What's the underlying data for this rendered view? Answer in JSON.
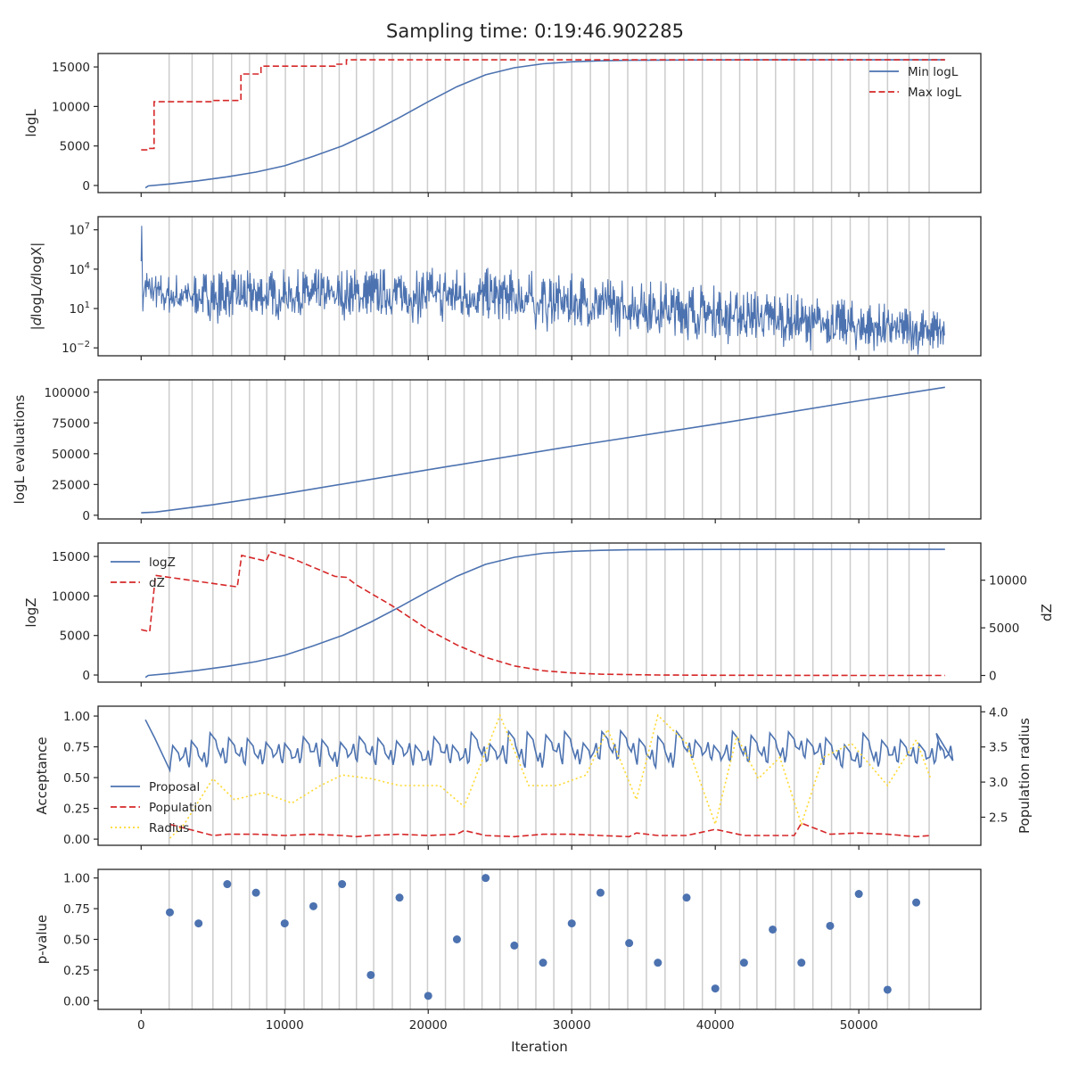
{
  "figure": {
    "title": "Sampling time: 0:19:46.902285",
    "xlabel": "Iteration"
  },
  "colors": {
    "blue": "#4c72b0",
    "red": "#d62728",
    "gold": "#ffd92f",
    "grid": "#cccccc",
    "axis": "#262626"
  },
  "run_markers": [
    1950,
    3550,
    5000,
    6300,
    7550,
    8750,
    10050,
    11350,
    12600,
    13800,
    15000,
    16200,
    17500,
    18750,
    19950,
    21200,
    22500,
    23750,
    25000,
    26250,
    27500,
    28750,
    30000,
    31300,
    32600,
    33900,
    35200,
    36500,
    37800,
    39100,
    40400,
    41700,
    42900,
    44200,
    45500,
    46800,
    48100,
    49400,
    50700,
    52000,
    53500,
    54900
  ],
  "chart_data": [
    {
      "type": "line",
      "ylabel": "logL",
      "xlim": [
        -3000,
        58500
      ],
      "ylim": [
        -900,
        16700
      ],
      "yticks": [
        0,
        5000,
        10000,
        15000
      ],
      "ytick_labels": [
        "0",
        "5000",
        "10000",
        "15000"
      ],
      "legend_loc": "upper right",
      "series": [
        {
          "name": "Min logL",
          "style": "solid",
          "color": "#4c72b0",
          "x": [
            300,
            500,
            2000,
            4000,
            6000,
            8000,
            10000,
            12000,
            14000,
            16000,
            18000,
            20000,
            22000,
            24000,
            26000,
            28000,
            30000,
            32000,
            34000,
            36000,
            40000,
            45000,
            50000,
            56000
          ],
          "y": [
            -300,
            -50,
            200,
            600,
            1100,
            1700,
            2500,
            3700,
            5000,
            6700,
            8600,
            10600,
            12500,
            14000,
            14900,
            15400,
            15650,
            15780,
            15840,
            15870,
            15890,
            15900,
            15900,
            15900
          ]
        },
        {
          "name": "Max logL",
          "style": "dashed",
          "color": "#d62728",
          "x": [
            0,
            600,
            600,
            900,
            900,
            5000,
            5000,
            6950,
            6950,
            8350,
            8350,
            13500,
            13500,
            14300,
            14300,
            56000
          ],
          "y": [
            4500,
            4500,
            4700,
            4700,
            10600,
            10600,
            10750,
            10750,
            14100,
            14100,
            15100,
            15100,
            15350,
            15350,
            15900,
            15900
          ]
        }
      ]
    },
    {
      "type": "line",
      "ylabel": "|dlogL/dlogX|",
      "yscale": "log",
      "xlim": [
        -3000,
        58500
      ],
      "ylim": [
        0.0025,
        100000000
      ],
      "yticks": [
        0.01,
        10,
        10000,
        10000000
      ],
      "ytick_labels": [
        "10^-2",
        "10^1",
        "10^4",
        "10^7"
      ],
      "noisy_band": {
        "x": [
          0,
          1500,
          5000,
          10000,
          15000,
          20000,
          25000,
          30000,
          35000,
          40000,
          45000,
          50000,
          56000
        ],
        "upper_log10": [
          4.6,
          3.7,
          3.9,
          4.0,
          4.1,
          4.2,
          4.1,
          3.7,
          3.3,
          2.8,
          2.2,
          1.6,
          1.0
        ],
        "lower_log10": [
          1.4,
          0.6,
          0.4,
          0.5,
          0.5,
          0.4,
          0.1,
          -0.3,
          -0.7,
          -1.1,
          -1.5,
          -1.9,
          -2.3
        ],
        "spike": {
          "x": 40,
          "log10": 7.3
        }
      },
      "series": [
        {
          "name": "",
          "style": "solid",
          "color": "#4c72b0"
        }
      ]
    },
    {
      "type": "line",
      "ylabel": "logL evaluations",
      "xlim": [
        -3000,
        58500
      ],
      "ylim": [
        -3000,
        110000
      ],
      "yticks": [
        0,
        25000,
        50000,
        75000,
        100000
      ],
      "ytick_labels": [
        "0",
        "25000",
        "50000",
        "75000",
        "100000"
      ],
      "series": [
        {
          "name": "",
          "style": "solid",
          "color": "#4c72b0",
          "x": [
            0,
            1000,
            5000,
            10000,
            20000,
            30000,
            40000,
            50000,
            56000
          ],
          "y": [
            2000,
            2600,
            8500,
            17500,
            37000,
            56000,
            74000,
            93000,
            104000
          ]
        }
      ]
    },
    {
      "type": "line",
      "ylabel": "logZ",
      "ylabel_right": "dZ",
      "xlim": [
        -3000,
        58500
      ],
      "ylim": [
        -900,
        16700
      ],
      "ylim_right": [
        -700,
        13900
      ],
      "yticks": [
        0,
        5000,
        10000,
        15000
      ],
      "ytick_labels": [
        "0",
        "5000",
        "10000",
        "15000"
      ],
      "yticks_right": [
        0,
        5000,
        10000
      ],
      "ytick_labels_right": [
        "0",
        "5000",
        "10000"
      ],
      "legend_loc": "upper left",
      "series": [
        {
          "name": "logZ",
          "style": "solid",
          "color": "#4c72b0",
          "axis": "left",
          "x": [
            300,
            500,
            2000,
            4000,
            6000,
            8000,
            10000,
            12000,
            14000,
            16000,
            18000,
            20000,
            22000,
            24000,
            26000,
            28000,
            30000,
            32000,
            34000,
            36000,
            40000,
            45000,
            50000,
            56000
          ],
          "y": [
            -300,
            -50,
            200,
            600,
            1100,
            1700,
            2500,
            3700,
            5000,
            6700,
            8600,
            10600,
            12500,
            14000,
            14900,
            15400,
            15650,
            15780,
            15840,
            15870,
            15890,
            15900,
            15900,
            15900
          ]
        },
        {
          "name": "dZ",
          "style": "dashed",
          "color": "#d62728",
          "axis": "right",
          "x": [
            0,
            600,
            600,
            1000,
            6700,
            6700,
            7000,
            8700,
            8700,
            9000,
            10500,
            13500,
            14300,
            15000,
            17500,
            20000,
            22000,
            24000,
            26000,
            28000,
            30000,
            32000,
            36000,
            40000,
            45000,
            50000,
            56000
          ],
          "y": [
            4800,
            4600,
            4700,
            10500,
            9300,
            9300,
            12600,
            12000,
            12000,
            13000,
            12300,
            10400,
            10300,
            9500,
            7300,
            4800,
            3200,
            1900,
            1000,
            500,
            260,
            130,
            50,
            20,
            8,
            3,
            0
          ]
        }
      ]
    },
    {
      "type": "line",
      "ylabel": "Acceptance",
      "ylabel_right": "Population radius",
      "xlim": [
        -3000,
        58500
      ],
      "ylim": [
        -0.05,
        1.08
      ],
      "ylim_right": [
        2.1,
        4.08
      ],
      "yticks": [
        0,
        0.25,
        0.5,
        0.75,
        1.0
      ],
      "ytick_labels": [
        "0.00",
        "0.25",
        "0.50",
        "0.75",
        "1.00"
      ],
      "yticks_right": [
        2.5,
        3.0,
        3.5,
        4.0
      ],
      "ytick_labels_right": [
        "2.5",
        "3.0",
        "3.5",
        "4.0"
      ],
      "legend_loc": "lower left",
      "series": [
        {
          "name": "Proposal",
          "style": "solid",
          "color": "#4c72b0",
          "axis": "left",
          "sawtooth": {
            "start_x": 300,
            "end_x": 55700,
            "period": 1300,
            "first_top": 0.97,
            "top": 0.82,
            "bottom": 0.63
          }
        },
        {
          "name": "Population",
          "style": "dashed",
          "color": "#d62728",
          "axis": "left",
          "x": [
            2000,
            4000,
            5000,
            6000,
            8000,
            10000,
            12000,
            14000,
            15000,
            16000,
            18000,
            20000,
            22000,
            22500,
            24000,
            26000,
            28000,
            30000,
            32000,
            34000,
            34500,
            36000,
            38000,
            40000,
            42000,
            44000,
            45500,
            46000,
            48000,
            50000,
            52000,
            54000,
            55000
          ],
          "y": [
            0.12,
            0.06,
            0.03,
            0.04,
            0.04,
            0.03,
            0.04,
            0.03,
            0.02,
            0.03,
            0.04,
            0.03,
            0.04,
            0.07,
            0.03,
            0.02,
            0.04,
            0.04,
            0.03,
            0.02,
            0.05,
            0.03,
            0.03,
            0.08,
            0.03,
            0.03,
            0.03,
            0.13,
            0.04,
            0.05,
            0.04,
            0.02,
            0.03
          ]
        },
        {
          "name": "Radius",
          "style": "dotted",
          "color": "#ffd92f",
          "axis": "right",
          "x": [
            2000,
            3000,
            5000,
            6500,
            8500,
            10500,
            12500,
            14000,
            16000,
            18000,
            20800,
            22500,
            25000,
            27000,
            29000,
            31000,
            32500,
            34500,
            36000,
            38000,
            40000,
            41500,
            43000,
            44500,
            46000,
            47500,
            49500,
            52000,
            54000,
            55000
          ],
          "y": [
            2.2,
            2.4,
            3.05,
            2.75,
            2.85,
            2.7,
            2.95,
            3.1,
            3.05,
            2.95,
            2.95,
            2.65,
            3.95,
            2.95,
            2.95,
            3.1,
            3.75,
            2.75,
            3.95,
            3.55,
            2.4,
            3.65,
            3.05,
            3.35,
            2.4,
            3.35,
            3.55,
            2.95,
            3.6,
            3.05
          ]
        }
      ]
    },
    {
      "type": "scatter",
      "ylabel": "p-value",
      "xlabel": "Iteration",
      "xlim": [
        -3000,
        58500
      ],
      "ylim": [
        -0.07,
        1.07
      ],
      "yticks": [
        0,
        0.25,
        0.5,
        0.75,
        1.0
      ],
      "ytick_labels": [
        "0.00",
        "0.25",
        "0.50",
        "0.75",
        "1.00"
      ],
      "xticks": [
        0,
        10000,
        20000,
        30000,
        40000,
        50000
      ],
      "xtick_labels": [
        "0",
        "10000",
        "20000",
        "30000",
        "40000",
        "50000"
      ],
      "series": [
        {
          "name": "",
          "color": "#4c72b0",
          "x": [
            2000,
            4000,
            6000,
            8000,
            10000,
            12000,
            14000,
            16000,
            18000,
            20000,
            22000,
            24000,
            26000,
            28000,
            30000,
            32000,
            34000,
            36000,
            38000,
            40000,
            42000,
            44000,
            46000,
            48000,
            50000,
            52000,
            54000
          ],
          "y": [
            0.72,
            0.63,
            0.95,
            0.88,
            0.63,
            0.77,
            0.95,
            0.21,
            0.84,
            0.04,
            0.5,
            1.0,
            0.45,
            0.31,
            0.63,
            0.88,
            0.47,
            0.31,
            0.84,
            0.1,
            0.31,
            0.58,
            0.31,
            0.61,
            0.87,
            0.09,
            0.8
          ]
        }
      ]
    }
  ]
}
